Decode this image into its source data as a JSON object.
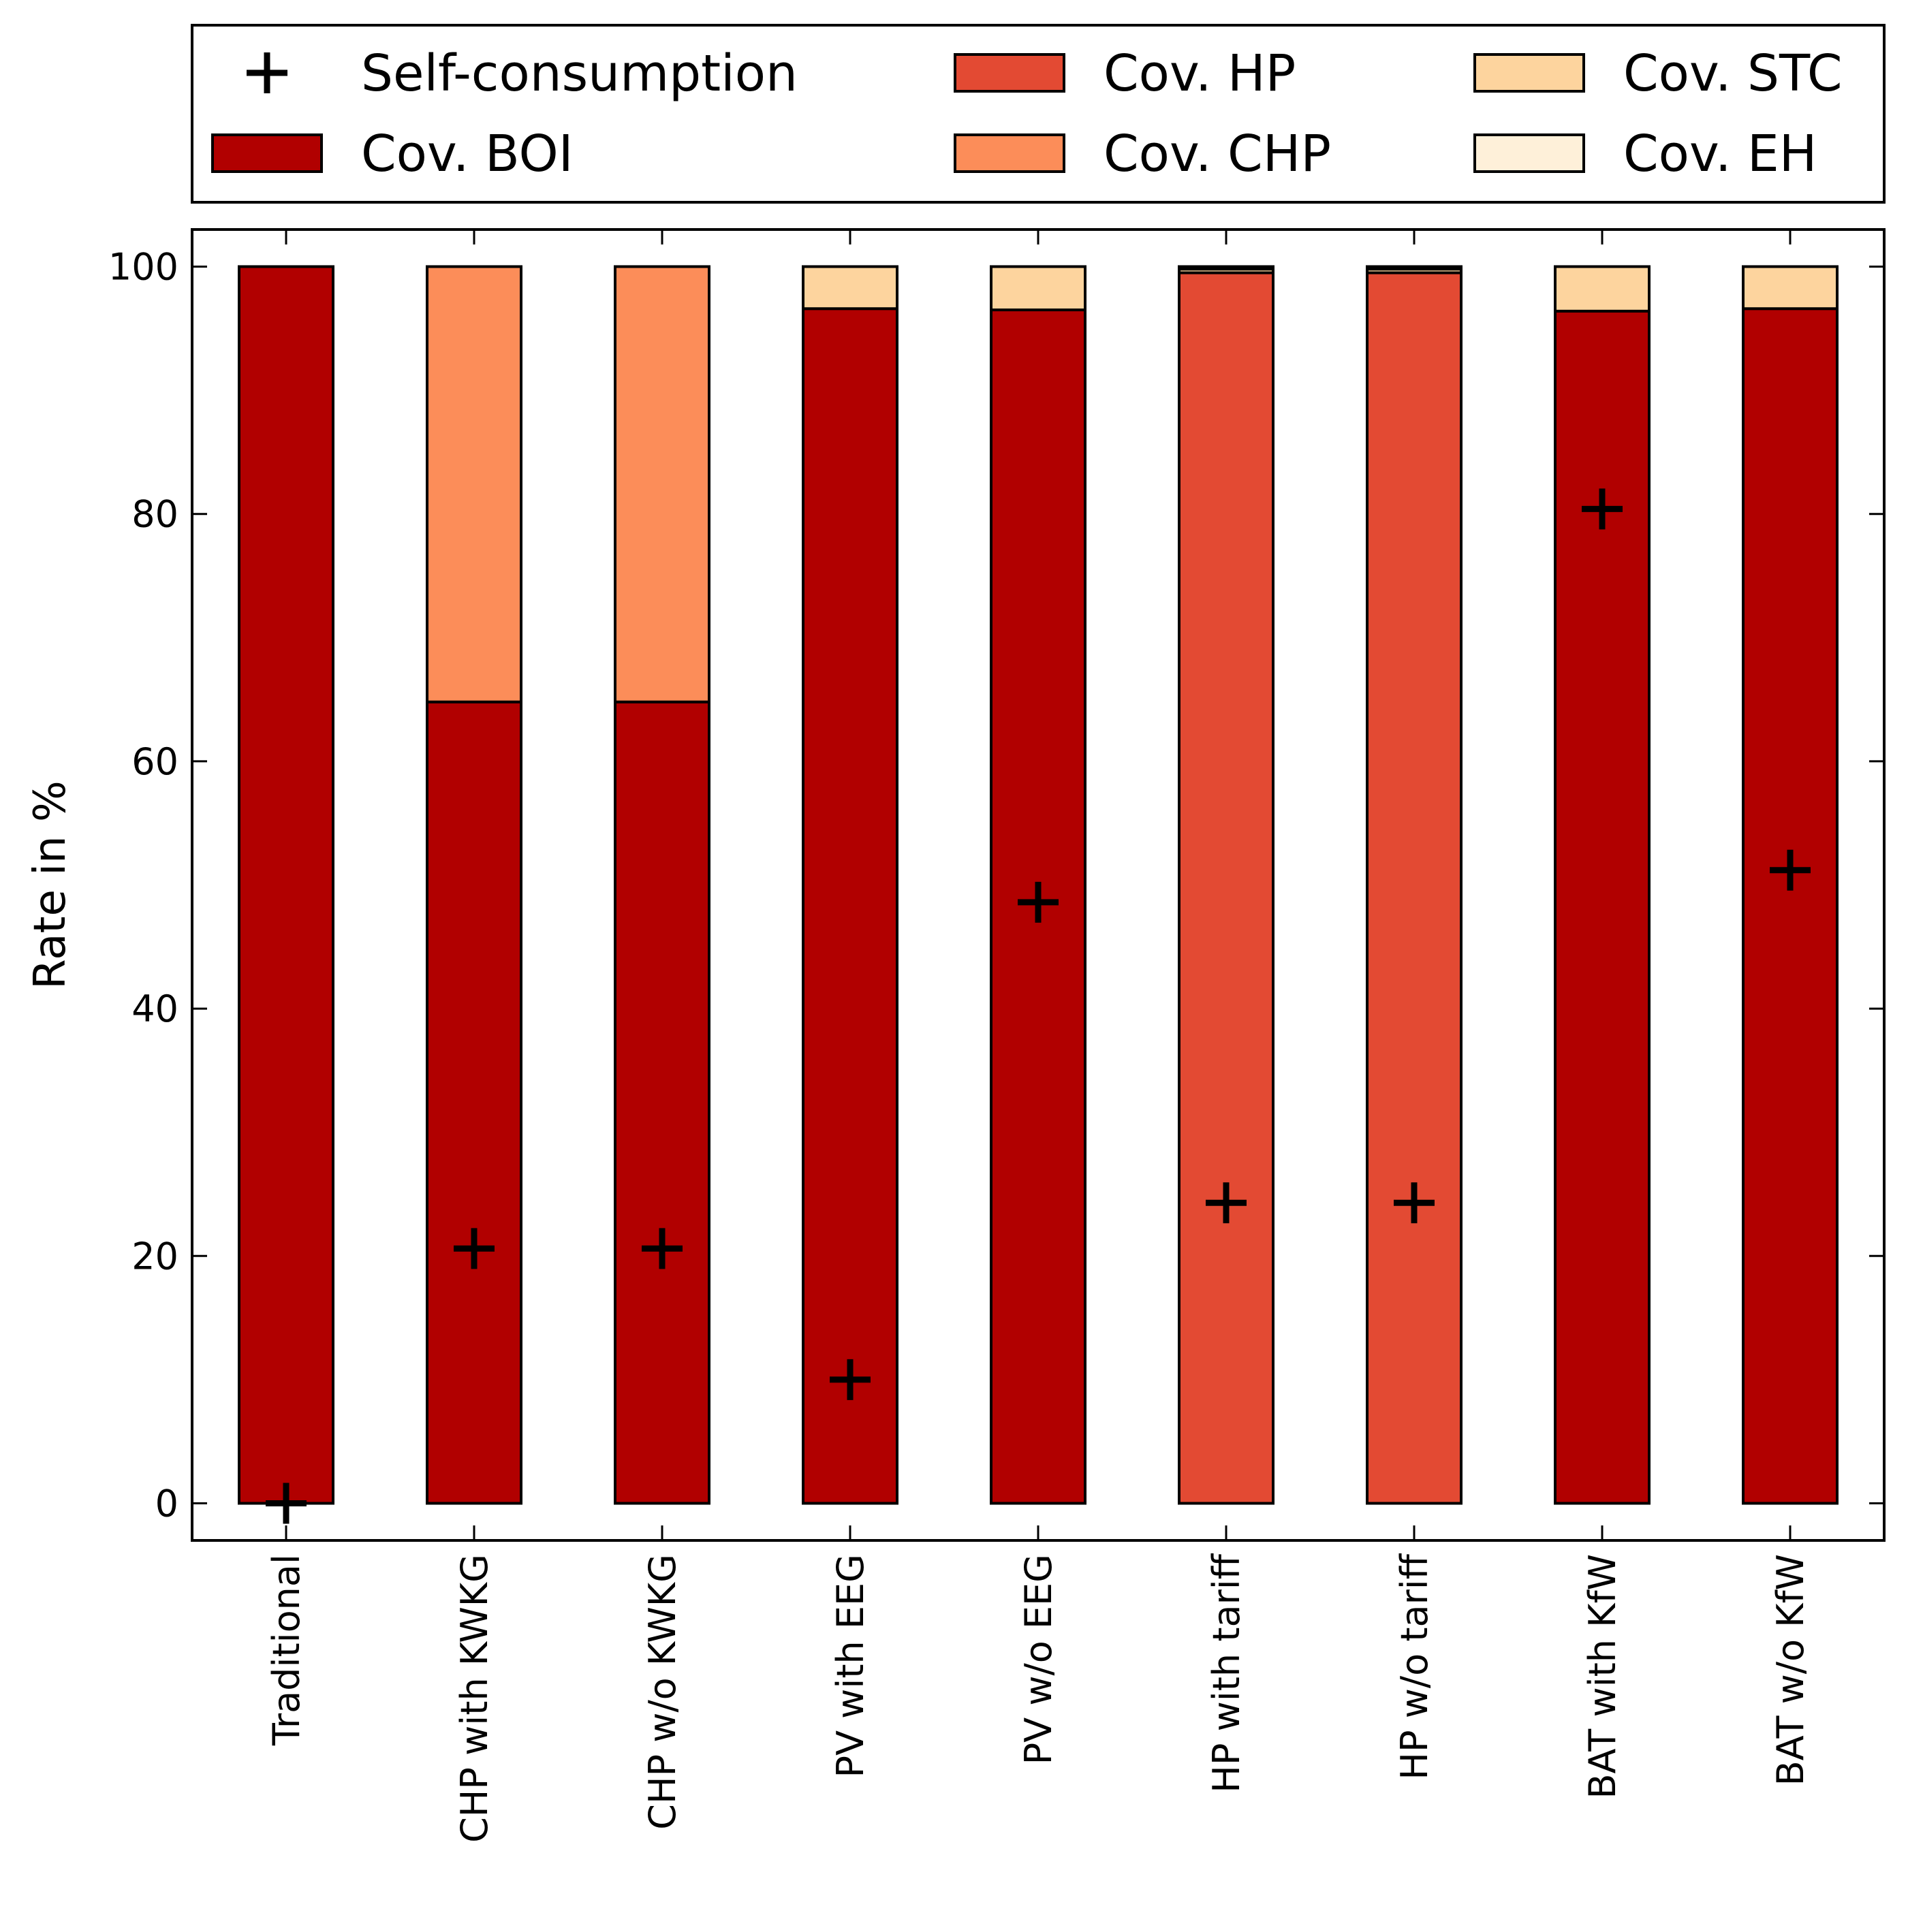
{
  "chart_data": {
    "type": "bar",
    "stacked": true,
    "categories": [
      "Traditional",
      "CHP with KWKG",
      "CHP w/o KWKG",
      "PV with EEG",
      "PV w/o EEG",
      "HP with tariff",
      "HP w/o tariff",
      "BAT with KfW",
      "BAT w/o KfW"
    ],
    "series": [
      {
        "name": "Cov. BOI",
        "color": "#b10000",
        "values": [
          100,
          64.8,
          64.8,
          96.6,
          96.5,
          0,
          0,
          96.4,
          96.6
        ]
      },
      {
        "name": "Cov. HP",
        "color": "#e34a33",
        "values": [
          0,
          0,
          0,
          0,
          0,
          99.5,
          99.5,
          0,
          0
        ]
      },
      {
        "name": "Cov. CHP",
        "color": "#fc8d59",
        "values": [
          0,
          35.2,
          35.2,
          0,
          0,
          0,
          0,
          0,
          0
        ]
      },
      {
        "name": "Cov. STC",
        "color": "#fdd49e",
        "values": [
          0,
          0,
          0,
          3.4,
          3.5,
          0.3,
          0.3,
          3.6,
          3.4
        ]
      },
      {
        "name": "Cov. EH",
        "color": "#fef0d9",
        "values": [
          0,
          0,
          0,
          0,
          0,
          0.2,
          0.2,
          0,
          0
        ]
      }
    ],
    "markers": {
      "name": "Self-consumption",
      "symbol": "+",
      "values": [
        0,
        20.6,
        20.6,
        10.0,
        48.6,
        24.3,
        24.3,
        80.4,
        51.2
      ]
    },
    "ylabel": "Rate in %",
    "xlabel": "",
    "ylim": [
      -3,
      103
    ],
    "yticks": [
      0,
      20,
      40,
      60,
      80,
      100
    ],
    "legend": {
      "placement": "top",
      "columns": 3
    }
  }
}
